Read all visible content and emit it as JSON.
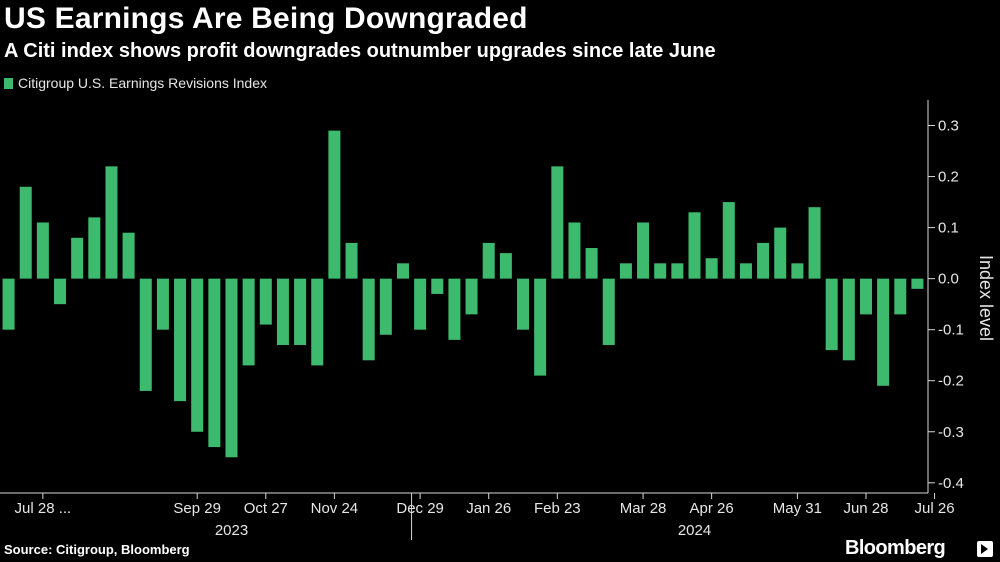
{
  "header": {
    "title": "US Earnings Are Being Downgraded",
    "subtitle": "A Citi index shows profit downgrades outnumber upgrades since late June"
  },
  "legend": {
    "label": "Citigroup U.S. Earnings Revisions Index"
  },
  "footer": {
    "source": "Source: Citigroup, Bloomberg",
    "brand": "Bloomberg"
  },
  "colors": {
    "bar": "#3dba6d",
    "background": "#000000",
    "axis": "#d9d9d9",
    "text": "#e6e6e6"
  },
  "chart_data": {
    "type": "bar",
    "title": "US Earnings Are Being Downgraded",
    "ylabel": "Index level",
    "ylim": [
      -0.42,
      0.35
    ],
    "yticks": [
      {
        "value": 0.3,
        "label": "0.3"
      },
      {
        "value": 0.2,
        "label": "0.2"
      },
      {
        "value": 0.1,
        "label": "0.1"
      },
      {
        "value": 0.0,
        "label": "0.0"
      },
      {
        "value": -0.1,
        "label": "-0.1"
      },
      {
        "value": -0.2,
        "label": "-0.2"
      },
      {
        "value": -0.3,
        "label": "-0.3"
      },
      {
        "value": -0.4,
        "label": "-0.4"
      }
    ],
    "x_tick_labels": [
      {
        "index": 2,
        "label": "Jul 28 ..."
      },
      {
        "index": 11,
        "label": "Sep 29"
      },
      {
        "index": 15,
        "label": "Oct 27"
      },
      {
        "index": 19,
        "label": "Nov 24"
      },
      {
        "index": 24,
        "label": "Dec 29"
      },
      {
        "index": 28,
        "label": "Jan 26"
      },
      {
        "index": 32,
        "label": "Feb 23"
      },
      {
        "index": 37,
        "label": "Mar 28"
      },
      {
        "index": 41,
        "label": "Apr 26"
      },
      {
        "index": 46,
        "label": "May 31"
      },
      {
        "index": 50,
        "label": "Jun 28"
      },
      {
        "index": 54,
        "label": "Jul 26"
      }
    ],
    "year_labels": [
      {
        "center_index": 13,
        "label": "2023"
      },
      {
        "center_index": 40,
        "label": "2024"
      }
    ],
    "year_divider_after_index": 23,
    "series": [
      {
        "name": "Citigroup U.S. Earnings Revisions Index",
        "values": [
          -0.1,
          0.18,
          0.11,
          -0.05,
          0.08,
          0.12,
          0.22,
          0.09,
          -0.22,
          -0.1,
          -0.24,
          -0.3,
          -0.33,
          -0.35,
          -0.17,
          -0.09,
          -0.13,
          -0.13,
          -0.17,
          0.29,
          0.07,
          -0.16,
          -0.11,
          0.03,
          -0.1,
          -0.03,
          -0.12,
          -0.07,
          0.07,
          0.05,
          -0.1,
          -0.19,
          0.22,
          0.11,
          0.06,
          -0.13,
          0.03,
          0.11,
          0.03,
          0.03,
          0.13,
          0.04,
          0.15,
          0.03,
          0.07,
          0.1,
          0.03,
          0.14,
          -0.14,
          -0.16,
          -0.07,
          -0.21,
          -0.07,
          -0.02
        ]
      }
    ]
  }
}
